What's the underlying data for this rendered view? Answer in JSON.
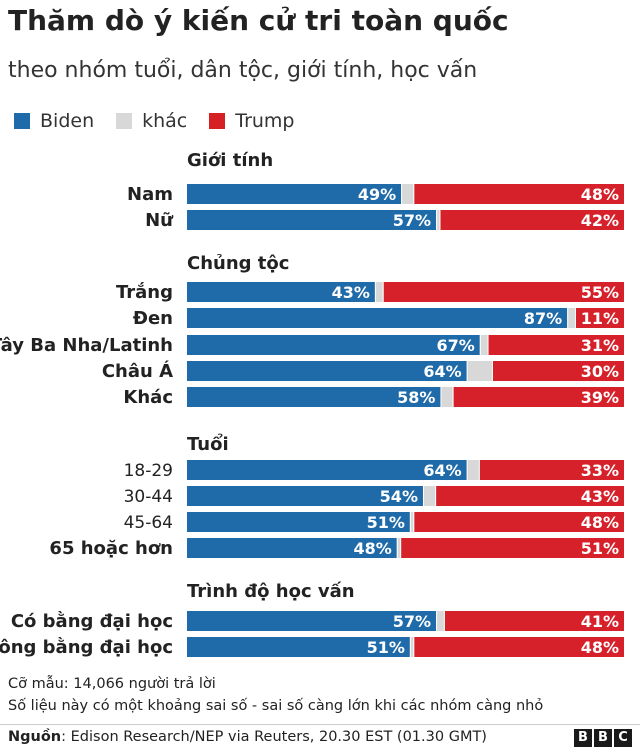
{
  "title": "Thăm dò ý kiến cử tri toàn quốc",
  "subtitle": "theo nhóm tuổi, dân tộc, giới tính, học vấn",
  "legend": [
    {
      "label": "Biden",
      "color": "#1f77b4"
    },
    {
      "label": "khác",
      "color": "#d8d8d8"
    },
    {
      "label": "Trump",
      "color": "#d62024"
    }
  ],
  "colors": {
    "biden": "#1f6aa8",
    "other": "#d8d8d8",
    "trump": "#d6202a"
  },
  "chart_data": {
    "type": "bar",
    "stacked": true,
    "orientation": "horizontal",
    "series_names": [
      "Biden",
      "khác",
      "Trump"
    ],
    "groups": [
      {
        "title": "Giới tính",
        "rows": [
          {
            "label": "Nam",
            "bold": true,
            "biden": 49,
            "trump": 48
          },
          {
            "label": "Nữ",
            "bold": true,
            "biden": 57,
            "trump": 42
          }
        ]
      },
      {
        "title": "Chủng tộc",
        "rows": [
          {
            "label": "Trắng",
            "bold": true,
            "biden": 43,
            "trump": 55
          },
          {
            "label": "Đen",
            "bold": true,
            "biden": 87,
            "trump": 11
          },
          {
            "label": "Tây Ba Nha/Latinh",
            "bold": true,
            "biden": 67,
            "trump": 31
          },
          {
            "label": "Châu Á",
            "bold": true,
            "biden": 64,
            "trump": 30
          },
          {
            "label": "Khác",
            "bold": true,
            "biden": 58,
            "trump": 39
          }
        ]
      },
      {
        "title": "Tuổi",
        "rows": [
          {
            "label": "18-29",
            "bold": false,
            "biden": 64,
            "trump": 33
          },
          {
            "label": "30-44",
            "bold": false,
            "biden": 54,
            "trump": 43
          },
          {
            "label": "45-64",
            "bold": false,
            "biden": 51,
            "trump": 48
          },
          {
            "label": "65 hoặc hơn",
            "bold": true,
            "biden": 48,
            "trump": 51
          }
        ]
      },
      {
        "title": "Trình độ học vấn",
        "rows": [
          {
            "label": "Có bằng đại học",
            "bold": true,
            "biden": 57,
            "trump": 41
          },
          {
            "label": "Không bằng đại học",
            "bold": true,
            "biden": 51,
            "trump": 48
          }
        ]
      }
    ]
  },
  "footer": {
    "sample": "Cỡ mẫu: 14,066 người trả lời",
    "note": "Số liệu này có một khoảng sai số - sai số càng lớn khi các nhóm càng nhỏ",
    "source_label": "Nguồn",
    "source_text": ": Edison Research/NEP via Reuters, 20.30 EST (01.30 GMT)",
    "logo_letters": [
      "B",
      "B",
      "C"
    ]
  }
}
